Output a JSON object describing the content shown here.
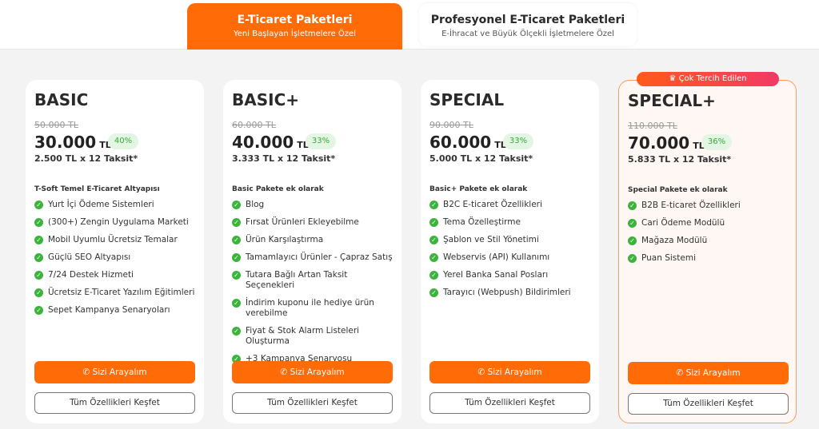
{
  "tabs": [
    {
      "title": "E-Ticaret Paketleri",
      "subtitle": "Yeni Başlayan İşletmelere Özel",
      "active": true
    },
    {
      "title": "Profesyonel E-Ticaret Paketleri",
      "subtitle": "E-İhracat ve Büyük Ölçekli İşletmelere Özel",
      "active": false
    }
  ],
  "colors": {
    "accent": "#ff6b06",
    "check": "#3cb43c"
  },
  "cards": [
    {
      "name": "BASIC",
      "old_price": "50.000 TL",
      "price": "30.000",
      "currency": "TL",
      "discount": "40%",
      "installment": "2.500 TL x 12 Taksit*",
      "section": "T-Soft Temel E-Ticaret Altyapısı",
      "features": [
        "Yurt İçi Ödeme Sistemleri",
        "(300+) Zengin Uygulama Marketi",
        "Mobil Uyumlu Ücretsiz Temalar",
        "Güçlü SEO Altyapısı",
        "7/24 Destek Hizmeti",
        "Ücretsiz E-Ticaret Yazılım Eğitimleri",
        "Sepet Kampanya Senaryoları"
      ],
      "call": "Sizi Arayalım",
      "more": "Tüm Özellikleri Keşfet"
    },
    {
      "name": "BASIC+",
      "old_price": "60.000 TL",
      "price": "40.000",
      "currency": "TL",
      "discount": "33%",
      "installment": "3.333 TL x 12 Taksit*",
      "section": "Basic Pakete ek olarak",
      "features": [
        "Blog",
        "Fırsat Ürünleri Ekleyebilme",
        "Ürün Karşılaştırma",
        "Tamamlayıcı Ürünler - Çapraz Satış",
        "Tutara Bağlı Artan Taksit Seçenekleri",
        "İndirim kuponu ile hediye ürün verebilme",
        "Fiyat & Stok Alarm Listeleri Oluşturma",
        "+3 Kampanya Senaryosu"
      ],
      "call": "Sizi Arayalım",
      "more": "Tüm Özellikleri Keşfet"
    },
    {
      "name": "SPECIAL",
      "old_price": "90.000 TL",
      "price": "60.000",
      "currency": "TL",
      "discount": "33%",
      "installment": "5.000 TL x 12 Taksit*",
      "section": "Basic+ Pakete ek olarak",
      "features": [
        "B2C E-ticaret Özellikleri",
        "Tema Özelleştirme",
        "Şablon ve Stil Yönetimi",
        "Webservis (API) Kullanımı",
        "Yerel Banka Sanal Posları",
        "Tarayıcı (Webpush) Bildirimleri"
      ],
      "call": "Sizi Arayalım",
      "more": "Tüm Özellikleri Keşfet"
    },
    {
      "name": "SPECIAL+",
      "badge": "Çok Tercih Edilen",
      "old_price": "110.000 TL",
      "price": "70.000",
      "currency": "TL",
      "discount": "36%",
      "installment": "5.833 TL x 12 Taksit*",
      "section": "Special Pakete ek olarak",
      "features": [
        "B2B E-ticaret Özellikleri",
        "Cari Ödeme Modülü",
        "Mağaza Modülü",
        "Puan Sistemi"
      ],
      "call": "Sizi Arayalım",
      "more": "Tüm Özellikleri Keşfet"
    }
  ]
}
